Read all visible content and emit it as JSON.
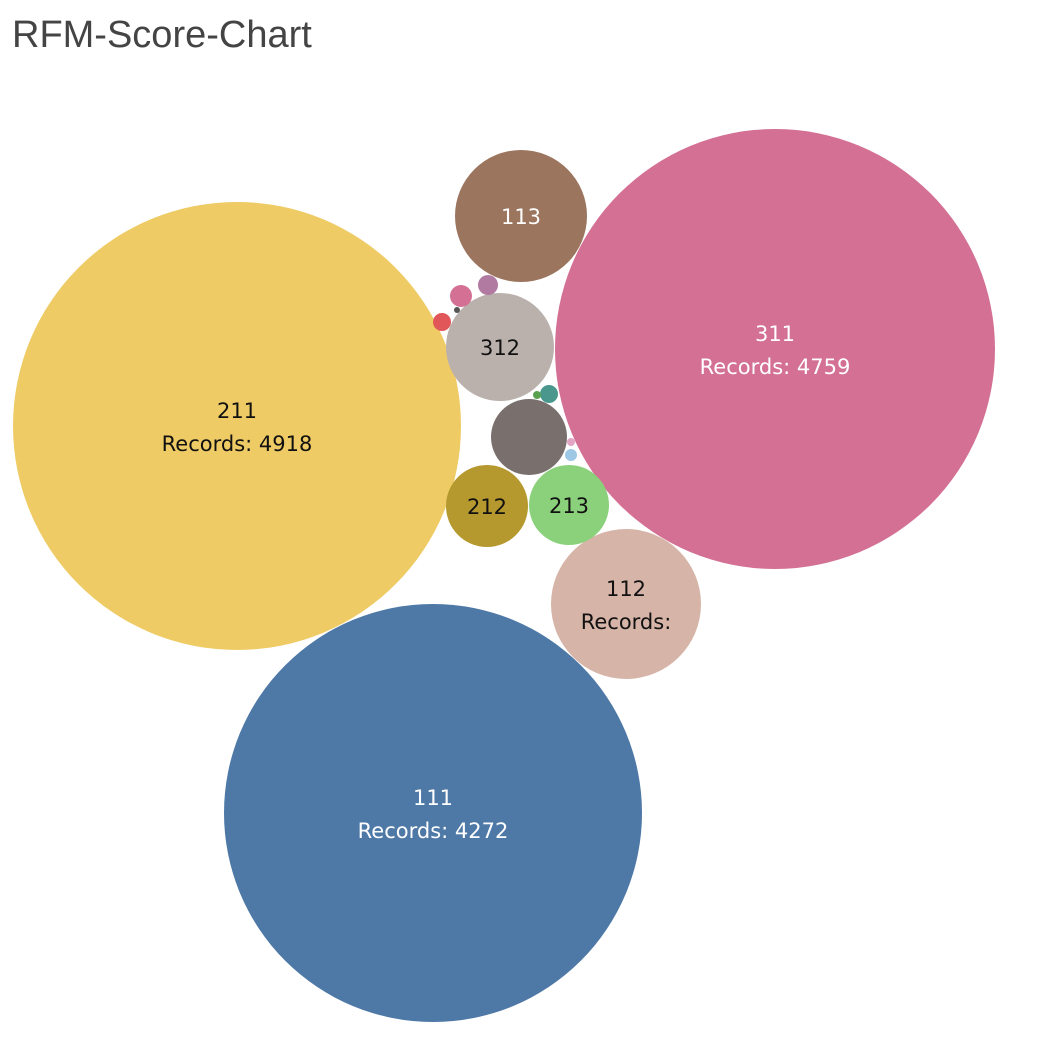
{
  "title": "RFM-Score-Chart",
  "chart_data": {
    "type": "packed-bubble",
    "title": "RFM-Score-Chart",
    "bubbles": [
      {
        "name": "211",
        "records_label": "Records: 4918",
        "value": 4918,
        "color": "#EFCB65",
        "text_color": "#111111"
      },
      {
        "name": "311",
        "records_label": "Records: 4759",
        "value": 4759,
        "color": "#D37093",
        "text_color": "#ffffff"
      },
      {
        "name": "111",
        "records_label": "Records: 4272",
        "value": 4272,
        "color": "#4E79A7",
        "text_color": "#ffffff"
      },
      {
        "name": "113",
        "records_label": "",
        "color": "#9C755F",
        "text_color": "#ffffff"
      },
      {
        "name": "112",
        "records_label": "Records:",
        "color": "#D6B4A7",
        "text_color": "#111111"
      },
      {
        "name": "312",
        "records_label": "",
        "color": "#BAB0AC",
        "text_color": "#111111"
      },
      {
        "name": "212",
        "records_label": "",
        "color": "#B5992F",
        "text_color": "#111111"
      },
      {
        "name": "213",
        "records_label": "",
        "color": "#8BD17B",
        "text_color": "#111111"
      },
      {
        "name": "",
        "records_label": "",
        "color": "#79706E",
        "text_color": "#ffffff"
      },
      {
        "name": "",
        "records_label": "",
        "color": "#D37093",
        "text_color": "#ffffff"
      },
      {
        "name": "",
        "records_label": "",
        "color": "#B07AA1",
        "text_color": "#ffffff"
      },
      {
        "name": "",
        "records_label": "",
        "color": "#E15759",
        "text_color": "#ffffff"
      },
      {
        "name": "",
        "records_label": "",
        "color": "#49978D",
        "text_color": "#ffffff"
      },
      {
        "name": "",
        "records_label": "",
        "color": "#59A14F",
        "text_color": "#ffffff"
      },
      {
        "name": "",
        "records_label": "",
        "color": "#9EC8E6",
        "text_color": "#ffffff"
      },
      {
        "name": "",
        "records_label": "",
        "color": "#E2A5C3",
        "text_color": "#ffffff"
      },
      {
        "name": "",
        "records_label": "",
        "color": "#555555",
        "text_color": "#ffffff"
      }
    ]
  }
}
